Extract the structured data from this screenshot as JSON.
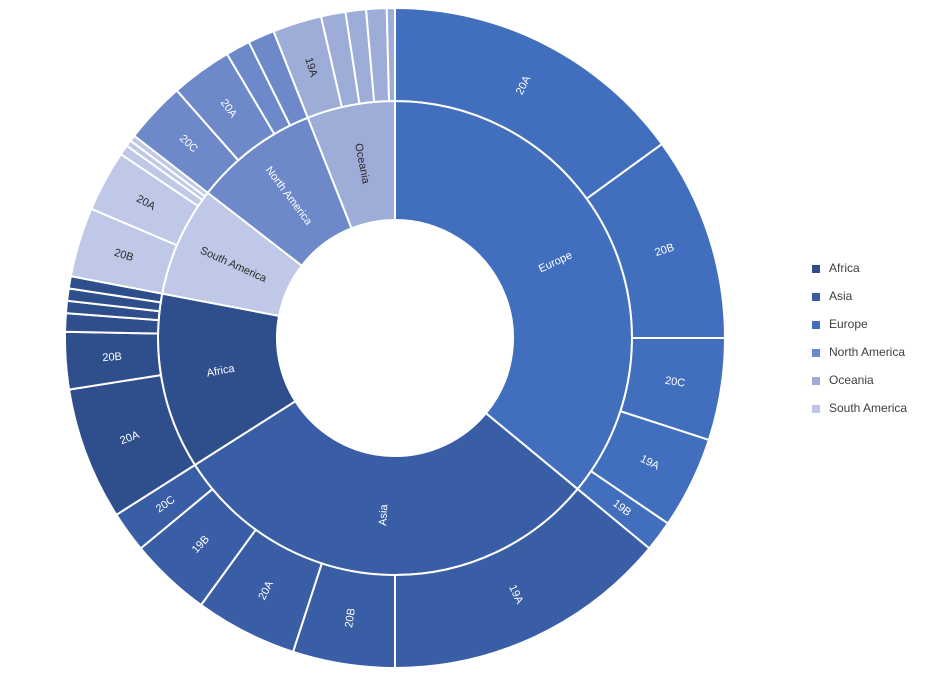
{
  "chart_data": {
    "type": "sunburst",
    "title": "",
    "colors": {
      "Africa": "#2f4f8c",
      "Asia": "#3a5ea6",
      "Europe": "#426fbd",
      "North America": "#6e89c9",
      "Oceania": "#9eadd8",
      "South America": "#bfc8e7"
    },
    "legend": {
      "position": "right",
      "entries": [
        "Africa",
        "Asia",
        "Europe",
        "North America",
        "Oceania",
        "South America"
      ]
    },
    "series": [
      {
        "name": "Europe",
        "label": "Europe",
        "value": 36.0,
        "children": [
          {
            "label": "20A",
            "value": 15.0
          },
          {
            "label": "20B",
            "value": 10.0
          },
          {
            "label": "20C",
            "value": 5.0
          },
          {
            "label": "19A",
            "value": 4.5
          },
          {
            "label": "19B",
            "value": 1.5
          }
        ]
      },
      {
        "name": "Asia",
        "label": "Asia",
        "value": 30.0,
        "children": [
          {
            "label": "19A",
            "value": 14.0
          },
          {
            "label": "20B",
            "value": 5.0
          },
          {
            "label": "20A",
            "value": 5.0
          },
          {
            "label": "19B",
            "value": 4.0
          },
          {
            "label": "20C",
            "value": 2.0
          }
        ]
      },
      {
        "name": "Africa",
        "label": "Africa",
        "value": 12.0,
        "children": [
          {
            "label": "20A",
            "value": 6.5
          },
          {
            "label": "20B",
            "value": 2.8
          },
          {
            "label": "",
            "value": 0.9
          },
          {
            "label": "",
            "value": 0.6
          },
          {
            "label": "",
            "value": 0.6
          },
          {
            "label": "",
            "value": 0.6
          }
        ]
      },
      {
        "name": "South America",
        "label": "South America",
        "value": 7.5,
        "children": [
          {
            "label": "20B",
            "value": 3.4
          },
          {
            "label": "20A",
            "value": 3.0
          },
          {
            "label": "",
            "value": 0.5
          },
          {
            "label": "",
            "value": 0.3
          },
          {
            "label": "",
            "value": 0.3
          }
        ]
      },
      {
        "name": "North America",
        "label": "North America",
        "value": 8.5,
        "children": [
          {
            "label": "20C",
            "value": 3.0
          },
          {
            "label": "20A",
            "value": 3.0
          },
          {
            "label": "",
            "value": 1.2
          },
          {
            "label": "",
            "value": 1.3
          }
        ]
      },
      {
        "name": "Oceania",
        "label": "Oceania",
        "value": 6.0,
        "children": [
          {
            "label": "19A",
            "value": 2.4
          },
          {
            "label": "",
            "value": 1.2
          },
          {
            "label": "",
            "value": 1.0
          },
          {
            "label": "",
            "value": 1.0
          },
          {
            "label": "",
            "value": 0.4
          }
        ]
      }
    ]
  }
}
